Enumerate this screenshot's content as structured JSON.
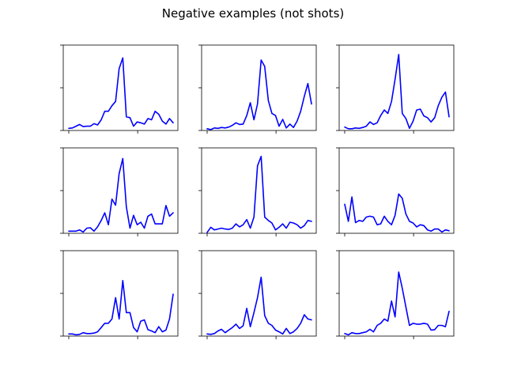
{
  "figure": {
    "title": "Negative examples (not shots)",
    "line_color": "#0000ff"
  },
  "chart_data": [
    {
      "type": "line",
      "values": [
        0.05,
        0.06,
        0.1,
        0.14,
        0.09,
        0.1,
        0.1,
        0.16,
        0.13,
        0.25,
        0.45,
        0.45,
        0.58,
        0.68,
        1.45,
        1.7,
        0.32,
        0.3,
        0.1,
        0.2,
        0.18,
        0.15,
        0.28,
        0.25,
        0.45,
        0.38,
        0.22,
        0.15,
        0.28,
        0.18
      ],
      "ylim": [
        0,
        2.0
      ],
      "grid": false
    },
    {
      "type": "line",
      "values": [
        0.04,
        0.02,
        0.06,
        0.05,
        0.07,
        0.06,
        0.08,
        0.12,
        0.18,
        0.14,
        0.15,
        0.35,
        0.65,
        0.25,
        0.62,
        1.65,
        1.5,
        0.7,
        0.4,
        0.35,
        0.1,
        0.26,
        0.06,
        0.15,
        0.07,
        0.22,
        0.45,
        0.8,
        1.1,
        0.62
      ],
      "ylim": [
        0,
        2.0
      ],
      "grid": false
    },
    {
      "type": "line",
      "values": [
        0.08,
        0.04,
        0.04,
        0.06,
        0.05,
        0.07,
        0.1,
        0.2,
        0.14,
        0.18,
        0.35,
        0.48,
        0.4,
        0.68,
        1.2,
        1.78,
        0.4,
        0.28,
        0.05,
        0.22,
        0.48,
        0.5,
        0.34,
        0.3,
        0.2,
        0.3,
        0.58,
        0.78,
        0.9,
        0.32
      ],
      "ylim": [
        0,
        2.0
      ],
      "grid": false
    },
    {
      "type": "line",
      "values": [
        0.05,
        0.05,
        0.05,
        0.08,
        0.03,
        0.12,
        0.13,
        0.05,
        0.15,
        0.3,
        0.48,
        0.2,
        0.8,
        0.66,
        1.4,
        1.75,
        0.62,
        0.12,
        0.42,
        0.2,
        0.26,
        0.12,
        0.4,
        0.45,
        0.22,
        0.22,
        0.22,
        0.65,
        0.4,
        0.48
      ],
      "ylim": [
        0,
        2.0
      ],
      "grid": false
    },
    {
      "type": "line",
      "values": [
        0.02,
        0.14,
        0.08,
        0.1,
        0.12,
        0.1,
        0.09,
        0.12,
        0.22,
        0.15,
        0.2,
        0.32,
        0.12,
        0.38,
        1.58,
        1.8,
        0.38,
        0.3,
        0.24,
        0.08,
        0.14,
        0.22,
        0.12,
        0.26,
        0.24,
        0.2,
        0.12,
        0.18,
        0.3,
        0.28
      ],
      "ylim": [
        0,
        2.0
      ],
      "grid": false
    },
    {
      "type": "line",
      "values": [
        0.68,
        0.28,
        0.85,
        0.25,
        0.3,
        0.28,
        0.38,
        0.4,
        0.38,
        0.2,
        0.22,
        0.4,
        0.28,
        0.2,
        0.42,
        0.92,
        0.82,
        0.45,
        0.28,
        0.24,
        0.15,
        0.2,
        0.18,
        0.08,
        0.05,
        0.1,
        0.1,
        0.03,
        0.08,
        0.06
      ],
      "ylim": [
        0,
        2.0
      ],
      "grid": false
    },
    {
      "type": "line",
      "values": [
        0.05,
        0.05,
        0.03,
        0.04,
        0.08,
        0.06,
        0.06,
        0.07,
        0.1,
        0.2,
        0.3,
        0.3,
        0.4,
        0.9,
        0.4,
        1.3,
        0.55,
        0.55,
        0.2,
        0.1,
        0.35,
        0.38,
        0.15,
        0.12,
        0.08,
        0.22,
        0.1,
        0.14,
        0.4,
        0.98
      ],
      "ylim": [
        0,
        2.0
      ],
      "grid": false
    },
    {
      "type": "line",
      "values": [
        0.05,
        0.04,
        0.06,
        0.12,
        0.16,
        0.08,
        0.14,
        0.2,
        0.28,
        0.18,
        0.24,
        0.65,
        0.22,
        0.55,
        0.9,
        1.38,
        0.48,
        0.3,
        0.25,
        0.14,
        0.1,
        0.05,
        0.18,
        0.06,
        0.1,
        0.18,
        0.3,
        0.5,
        0.4,
        0.38
      ],
      "ylim": [
        0,
        2.0
      ],
      "grid": false
    },
    {
      "type": "line",
      "values": [
        0.06,
        0.03,
        0.08,
        0.06,
        0.06,
        0.08,
        0.1,
        0.16,
        0.1,
        0.25,
        0.3,
        0.4,
        0.35,
        0.82,
        0.45,
        1.5,
        1.12,
        0.68,
        0.25,
        0.3,
        0.28,
        0.28,
        0.3,
        0.28,
        0.14,
        0.15,
        0.25,
        0.25,
        0.22,
        0.58
      ],
      "ylim": [
        0,
        2.0
      ],
      "grid": false
    }
  ]
}
